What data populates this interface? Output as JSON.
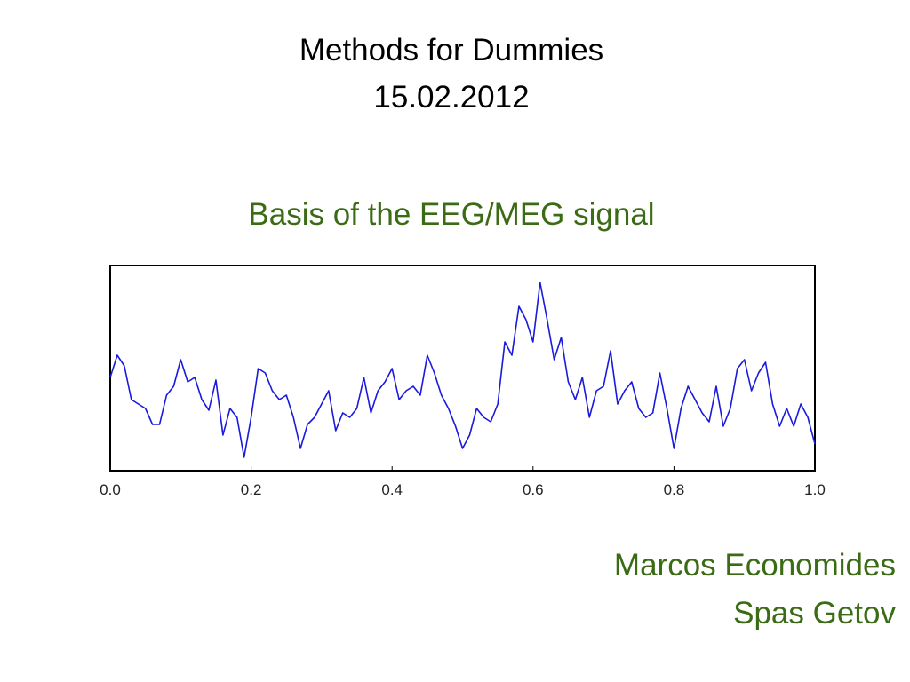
{
  "slide": {
    "title_line1": "Methods for Dummies",
    "title_line2": "15.02.2012",
    "subtitle": "Basis of the EEG/MEG signal",
    "author1": "Marcos Economides",
    "author2": "Spas Getov"
  },
  "chart_data": {
    "type": "line",
    "x": [
      0,
      0.01,
      0.02,
      0.03,
      0.04,
      0.05,
      0.06,
      0.07,
      0.08,
      0.09,
      0.1,
      0.11,
      0.12,
      0.13,
      0.14,
      0.15,
      0.16,
      0.17,
      0.18,
      0.19,
      0.2,
      0.21,
      0.22,
      0.23,
      0.24,
      0.25,
      0.26,
      0.27,
      0.28,
      0.29,
      0.3,
      0.31,
      0.32,
      0.33,
      0.34,
      0.35,
      0.36,
      0.37,
      0.38,
      0.39,
      0.4,
      0.41,
      0.42,
      0.43,
      0.44,
      0.45,
      0.46,
      0.47,
      0.48,
      0.49,
      0.5,
      0.51,
      0.52,
      0.53,
      0.54,
      0.55,
      0.56,
      0.57,
      0.58,
      0.59,
      0.6,
      0.61,
      0.62,
      0.63,
      0.64,
      0.65,
      0.66,
      0.67,
      0.68,
      0.69,
      0.7,
      0.71,
      0.72,
      0.73,
      0.74,
      0.75,
      0.76,
      0.77,
      0.78,
      0.79,
      0.8,
      0.81,
      0.82,
      0.83,
      0.84,
      0.85,
      0.86,
      0.87,
      0.88,
      0.89,
      0.9,
      0.91,
      0.92,
      0.93,
      0.94,
      0.95,
      0.96,
      0.97,
      0.98,
      0.99,
      1
    ],
    "series": [
      {
        "color": "#1a1adc",
        "values": [
          105,
          130,
          118,
          80,
          75,
          70,
          52,
          52,
          85,
          95,
          125,
          100,
          105,
          80,
          68,
          102,
          40,
          70,
          60,
          15,
          60,
          115,
          110,
          90,
          80,
          85,
          60,
          25,
          52,
          60,
          75,
          90,
          45,
          65,
          60,
          70,
          105,
          65,
          90,
          100,
          115,
          80,
          90,
          95,
          85,
          130,
          110,
          85,
          70,
          50,
          25,
          40,
          70,
          60,
          55,
          75,
          145,
          130,
          185,
          170,
          145,
          212,
          170,
          125,
          150,
          100,
          80,
          105,
          60,
          90,
          95,
          135,
          75,
          90,
          100,
          70,
          60,
          65,
          110,
          70,
          25,
          70,
          95,
          80,
          65,
          55,
          95,
          50,
          70,
          115,
          125,
          90,
          110,
          122,
          75,
          50,
          70,
          50,
          75,
          60,
          30
        ]
      }
    ],
    "xlim": [
      0,
      1
    ],
    "ylim": [
      0,
      230
    ],
    "xticks": [
      {
        "value": 0,
        "label": "0.0"
      },
      0.2,
      0.4,
      0.6,
      0.8,
      {
        "value": 1,
        "label": "1.0"
      }
    ]
  }
}
